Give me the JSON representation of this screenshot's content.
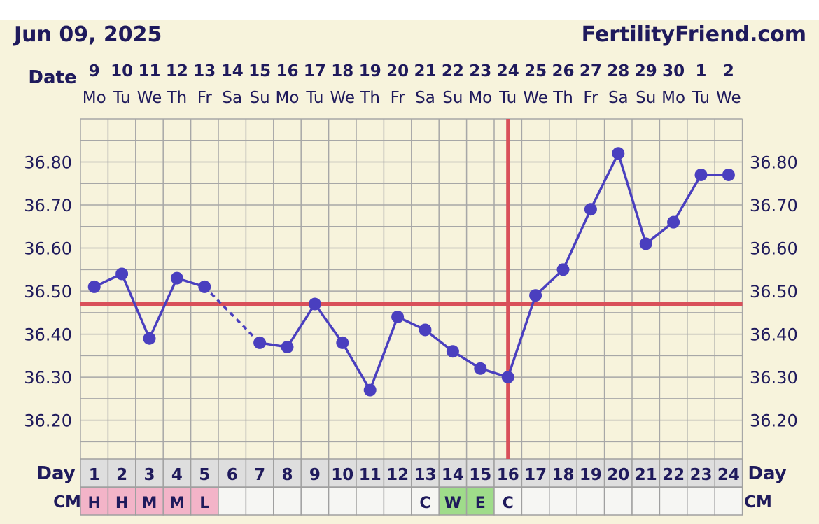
{
  "header": {
    "date_text": "Jun 09, 2025",
    "site": "FertilityFriend.com",
    "date_label": "Date",
    "day_label": "Day",
    "cm_label": "CM"
  },
  "colors": {
    "line": "#4a3fbf",
    "coverline": "#d9505a",
    "cm_pink": "#f3b4c8",
    "cm_green": "#9fdc8a"
  },
  "chart_data": {
    "type": "line",
    "title": "",
    "x_dates": [
      "9",
      "10",
      "11",
      "12",
      "13",
      "14",
      "15",
      "16",
      "17",
      "18",
      "19",
      "20",
      "21",
      "22",
      "23",
      "24",
      "25",
      "26",
      "27",
      "28",
      "29",
      "30",
      "1",
      "2"
    ],
    "x_weekdays": [
      "Mo",
      "Tu",
      "We",
      "Th",
      "Fr",
      "Sa",
      "Su",
      "Mo",
      "Tu",
      "We",
      "Th",
      "Fr",
      "Sa",
      "Su",
      "Mo",
      "Tu",
      "We",
      "Th",
      "Fr",
      "Sa",
      "Su",
      "Mo",
      "Tu",
      "We"
    ],
    "cycle_days": [
      "1",
      "2",
      "3",
      "4",
      "5",
      "6",
      "7",
      "8",
      "9",
      "10",
      "11",
      "12",
      "13",
      "14",
      "15",
      "16",
      "17",
      "18",
      "19",
      "20",
      "21",
      "22",
      "23",
      "24"
    ],
    "ylim": [
      36.11,
      36.9
    ],
    "y_ticks": [
      "36.20",
      "36.30",
      "36.40",
      "36.50",
      "36.60",
      "36.70",
      "36.80"
    ],
    "series": [
      {
        "values": [
          36.51,
          36.54,
          36.39,
          36.53,
          36.51,
          null,
          36.38,
          36.37,
          36.47,
          36.38,
          36.27,
          36.44,
          36.41,
          36.36,
          36.32,
          36.3,
          36.49,
          36.55,
          36.69,
          36.82,
          36.61,
          36.66,
          36.77,
          36.77
        ]
      }
    ],
    "coverline": 36.47,
    "ovulation_day": 16,
    "cervical_mucus": [
      "H",
      "H",
      "M",
      "M",
      "L",
      "",
      "",
      "",
      "",
      "",
      "",
      "",
      "C",
      "W",
      "E",
      "C",
      "",
      "",
      "",
      "",
      "",
      "",
      "",
      ""
    ]
  }
}
